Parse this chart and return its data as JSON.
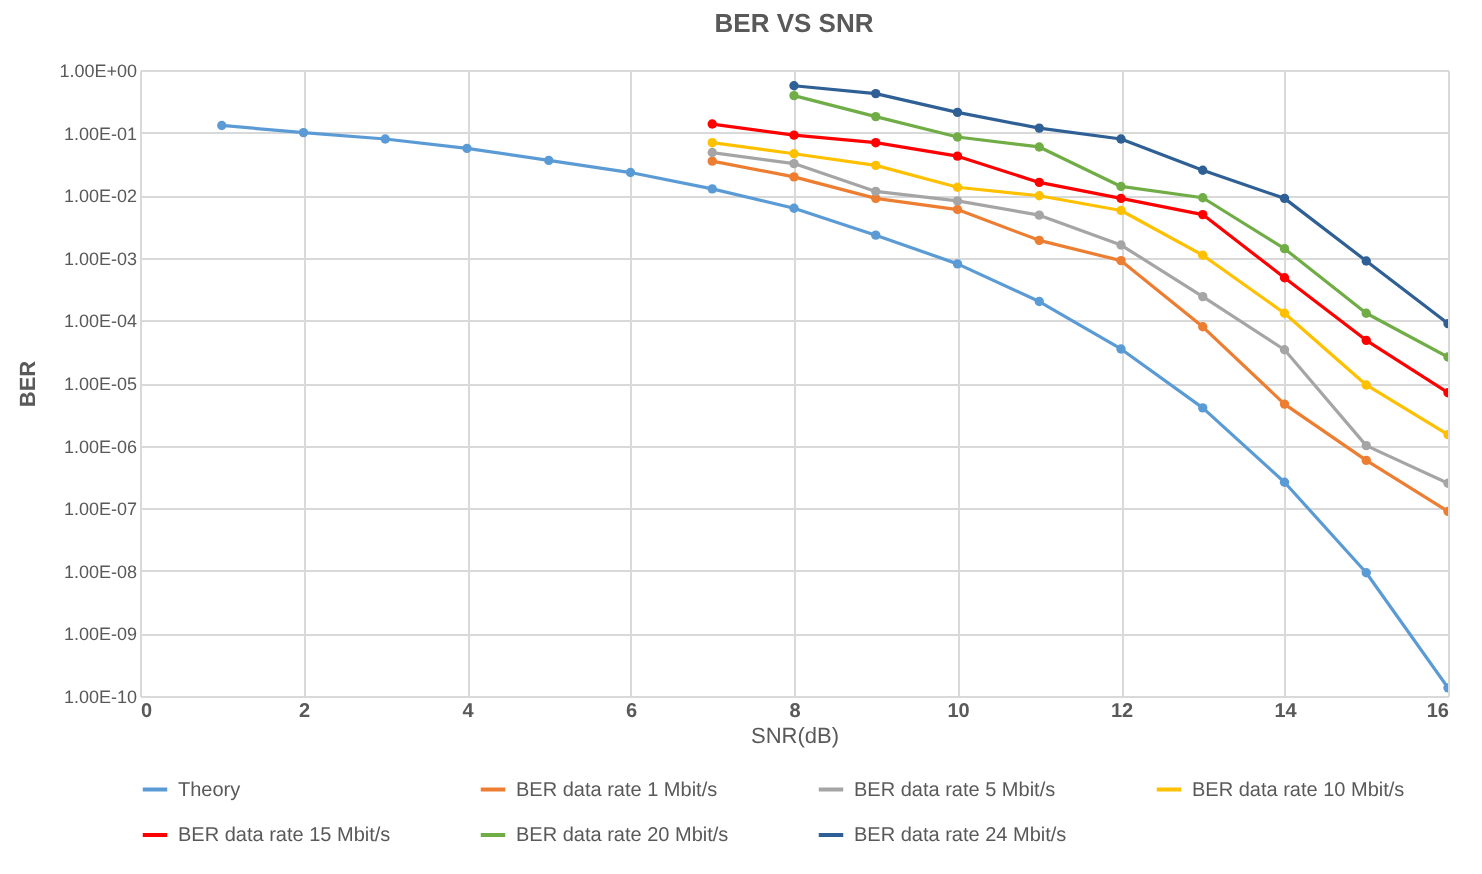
{
  "chart_data": {
    "type": "line",
    "title": "BER VS SNR",
    "xlabel": "SNR(dB)",
    "ylabel": "BER",
    "log": "y",
    "grid": true,
    "legend": "bottom",
    "marker": "circle",
    "line_style": "solid",
    "xlim": [
      0,
      16
    ],
    "xticks": [
      0,
      2,
      4,
      6,
      8,
      10,
      12,
      14,
      16
    ],
    "ylim": [
      1e-10,
      1
    ],
    "yticks": [
      {
        "value": 1e-10,
        "label": "1.00E-10"
      },
      {
        "value": 1e-09,
        "label": "1.00E-09"
      },
      {
        "value": 1e-08,
        "label": "1.00E-08"
      },
      {
        "value": 1e-07,
        "label": "1.00E-07"
      },
      {
        "value": 1e-06,
        "label": "1.00E-06"
      },
      {
        "value": 1e-05,
        "label": "1.00E-05"
      },
      {
        "value": 0.0001,
        "label": "1.00E-04"
      },
      {
        "value": 0.001,
        "label": "1.00E-03"
      },
      {
        "value": 0.01,
        "label": "1.00E-02"
      },
      {
        "value": 0.1,
        "label": "1.00E-01"
      },
      {
        "value": 1,
        "label": "1.00E+00"
      }
    ],
    "series": [
      {
        "name": "Theory",
        "color": "#5b9bd5",
        "x": [
          1,
          2,
          3,
          4,
          5,
          6,
          7,
          8,
          9,
          10,
          11,
          12,
          13,
          14,
          15,
          16
        ],
        "values": [
          0.13,
          0.1,
          0.079,
          0.056,
          0.036,
          0.023,
          0.0126,
          0.0062,
          0.0023,
          0.0008,
          0.0002,
          3.5e-05,
          4e-06,
          2.6e-07,
          9.3e-09,
          1.35e-10
        ]
      },
      {
        "name": "BER  data rate 1 Mbit/s",
        "color": "#ed7d31",
        "x": [
          7,
          8,
          9,
          10,
          11,
          12,
          13,
          14,
          15,
          16
        ],
        "values": [
          0.035,
          0.0196,
          0.0089,
          0.0059,
          0.0019,
          0.0009,
          7.9e-05,
          4.6e-06,
          5.8e-07,
          8.9e-08
        ]
      },
      {
        "name": "BER data rate 5 Mbit/s",
        "color": "#a5a5a5",
        "x": [
          7,
          8,
          9,
          10,
          11,
          12,
          13,
          14,
          15,
          16
        ],
        "values": [
          0.048,
          0.032,
          0.0115,
          0.0081,
          0.0048,
          0.0016,
          0.00024,
          3.4e-05,
          1e-06,
          2.5e-07
        ]
      },
      {
        "name": "BER data rate 10 Mbit/s",
        "color": "#ffc000",
        "x": [
          7,
          8,
          9,
          10,
          11,
          12,
          13,
          14,
          15,
          16
        ],
        "values": [
          0.069,
          0.046,
          0.03,
          0.0134,
          0.0098,
          0.0057,
          0.0011,
          0.00013,
          9.3e-06,
          1.5e-06
        ]
      },
      {
        "name": "BER data rate 15 Mbit/s",
        "color": "#ff0000",
        "x": [
          7,
          8,
          9,
          10,
          11,
          12,
          13,
          14,
          15,
          16
        ],
        "values": [
          0.137,
          0.091,
          0.069,
          0.042,
          0.016,
          0.0089,
          0.0049,
          0.00048,
          4.8e-05,
          7e-06
        ]
      },
      {
        "name": "BER data rate 20 Mbit/s",
        "color": "#70ad47",
        "x": [
          8,
          9,
          10,
          11,
          12,
          13,
          14,
          15,
          16
        ],
        "values": [
          0.39,
          0.18,
          0.085,
          0.059,
          0.0138,
          0.0091,
          0.0014,
          0.00013,
          2.6e-05
        ]
      },
      {
        "name": "BER data rate 24 Mbit/s",
        "color": "#2e5f95",
        "x": [
          8,
          9,
          10,
          11,
          12,
          13,
          14,
          15,
          16
        ],
        "values": [
          0.56,
          0.42,
          0.21,
          0.118,
          0.079,
          0.025,
          0.0089,
          0.00089,
          8.9e-05
        ]
      }
    ]
  }
}
